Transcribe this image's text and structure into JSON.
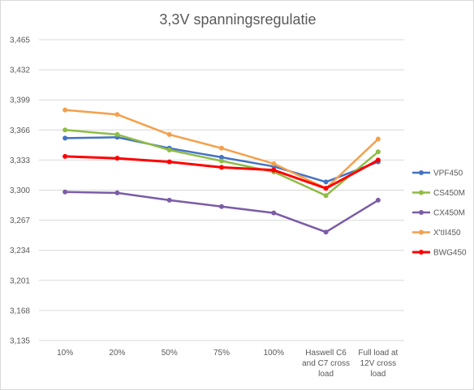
{
  "chart_data": {
    "type": "line",
    "title": "3,3V spanningsregulatie",
    "xlabel": "",
    "ylabel": "",
    "categories": [
      [
        "10%"
      ],
      [
        "20%"
      ],
      [
        "50%"
      ],
      [
        "75%"
      ],
      [
        "100%"
      ],
      [
        "Haswell C6",
        "and C7 cross",
        "load"
      ],
      [
        "Full load at",
        "12V cross",
        "load"
      ]
    ],
    "ylim": [
      3.135,
      3.465
    ],
    "yticks": [
      3.135,
      3.168,
      3.201,
      3.234,
      3.267,
      3.3,
      3.333,
      3.366,
      3.399,
      3.432,
      3.465
    ],
    "ytick_labels": [
      "3,135",
      "3,168",
      "3,201",
      "3,234",
      "3,267",
      "3,300",
      "3,333",
      "3,366",
      "3,399",
      "3,432",
      "3,465"
    ],
    "grid": true,
    "legend_position": "right",
    "series": [
      {
        "name": "VPF450",
        "color": "#4472c4",
        "width": 2.5,
        "values": [
          3.357,
          3.358,
          3.346,
          3.336,
          3.326,
          3.309,
          3.331
        ]
      },
      {
        "name": "CS450M",
        "color": "#8fbc45",
        "width": 2.5,
        "values": [
          3.366,
          3.361,
          3.344,
          3.332,
          3.32,
          3.294,
          3.342
        ]
      },
      {
        "name": "CX450M",
        "color": "#7b5ca7",
        "width": 2.5,
        "values": [
          3.298,
          3.297,
          3.289,
          3.282,
          3.275,
          3.254,
          3.289
        ]
      },
      {
        "name": "X'tII450",
        "color": "#f4a04c",
        "width": 2.5,
        "values": [
          3.388,
          3.383,
          3.361,
          3.346,
          3.329,
          3.302,
          3.356
        ]
      },
      {
        "name": "BWG450",
        "color": "#ff0000",
        "width": 3,
        "values": [
          3.337,
          3.335,
          3.331,
          3.325,
          3.322,
          3.302,
          3.333
        ]
      }
    ]
  }
}
